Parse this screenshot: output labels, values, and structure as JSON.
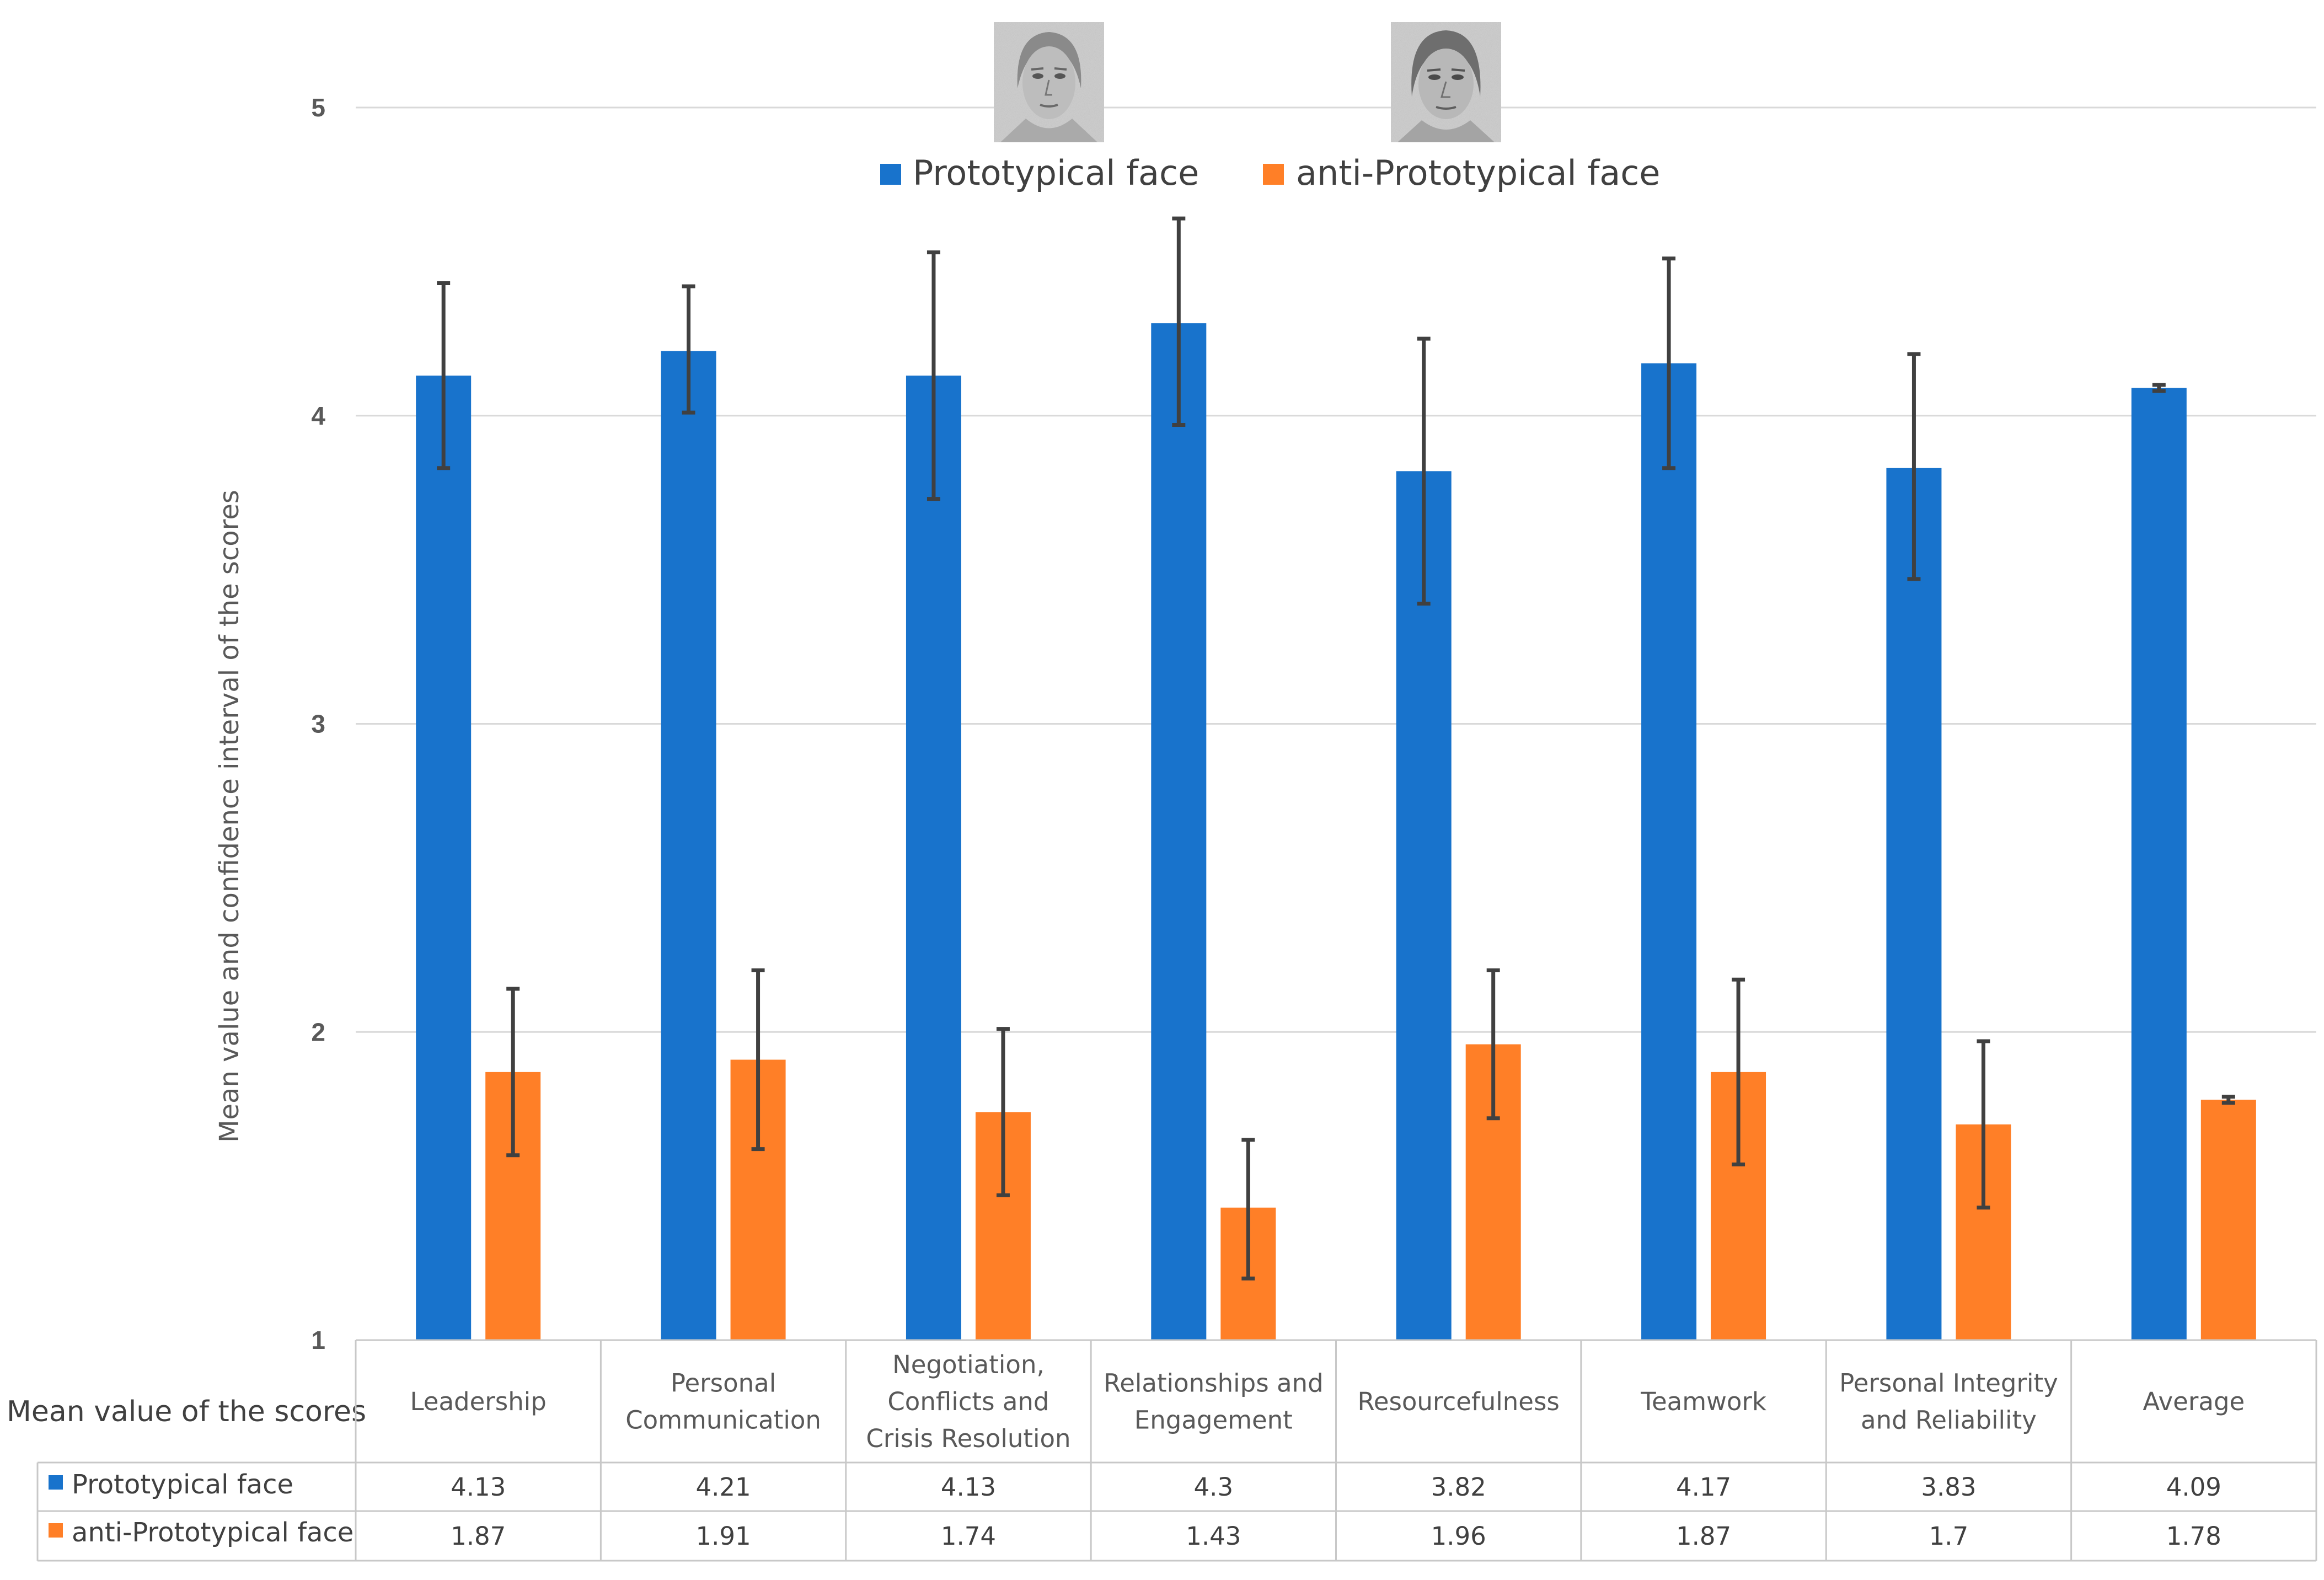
{
  "chart_data": {
    "type": "bar",
    "title": "",
    "ylabel": "Mean value and confidence interval of the scores",
    "xlabel": "",
    "ylim": [
      1,
      5
    ],
    "yticks": [
      "1",
      "2",
      "3",
      "4",
      "5"
    ],
    "gridlines": true,
    "legend_position": "top-center",
    "categories": [
      [
        "Leadership"
      ],
      [
        "Personal",
        "Communication"
      ],
      [
        "Negotiation,",
        "Conflicts and",
        "Crisis Resolution"
      ],
      [
        "Relationships and",
        "Engagement"
      ],
      [
        "Resourcefulness"
      ],
      [
        "Teamwork"
      ],
      [
        "Personal Integrity",
        "and Reliability"
      ],
      [
        "Average"
      ]
    ],
    "series": [
      {
        "name": "Prototypical face",
        "color": "#1873CC",
        "values": [
          4.13,
          4.21,
          4.13,
          4.3,
          3.82,
          4.17,
          3.83,
          4.09
        ],
        "value_labels": [
          "4.13",
          "4.21",
          "4.13",
          "4.3",
          "3.82",
          "4.17",
          "3.83",
          "4.09"
        ],
        "ci_low": [
          3.83,
          4.01,
          3.73,
          3.97,
          3.39,
          3.83,
          3.47,
          4.08
        ],
        "ci_high": [
          4.43,
          4.42,
          4.53,
          4.64,
          4.25,
          4.51,
          4.2,
          4.1
        ]
      },
      {
        "name": "anti-Prototypical face",
        "color": "#FF7F27",
        "values": [
          1.87,
          1.91,
          1.74,
          1.43,
          1.96,
          1.87,
          1.7,
          1.78
        ],
        "value_labels": [
          "1.87",
          "1.91",
          "1.74",
          "1.43",
          "1.96",
          "1.87",
          "1.7",
          "1.78"
        ],
        "ci_low": [
          1.6,
          1.62,
          1.47,
          1.2,
          1.72,
          1.57,
          1.43,
          1.77
        ],
        "ci_high": [
          2.14,
          2.2,
          2.01,
          1.65,
          2.2,
          2.17,
          1.97,
          1.79
        ]
      }
    ],
    "table_title": "Mean value of the scores",
    "error_bar_color": "#404040"
  },
  "legend_face_icons": [
    "face-prototypical",
    "face-anti-prototypical"
  ]
}
